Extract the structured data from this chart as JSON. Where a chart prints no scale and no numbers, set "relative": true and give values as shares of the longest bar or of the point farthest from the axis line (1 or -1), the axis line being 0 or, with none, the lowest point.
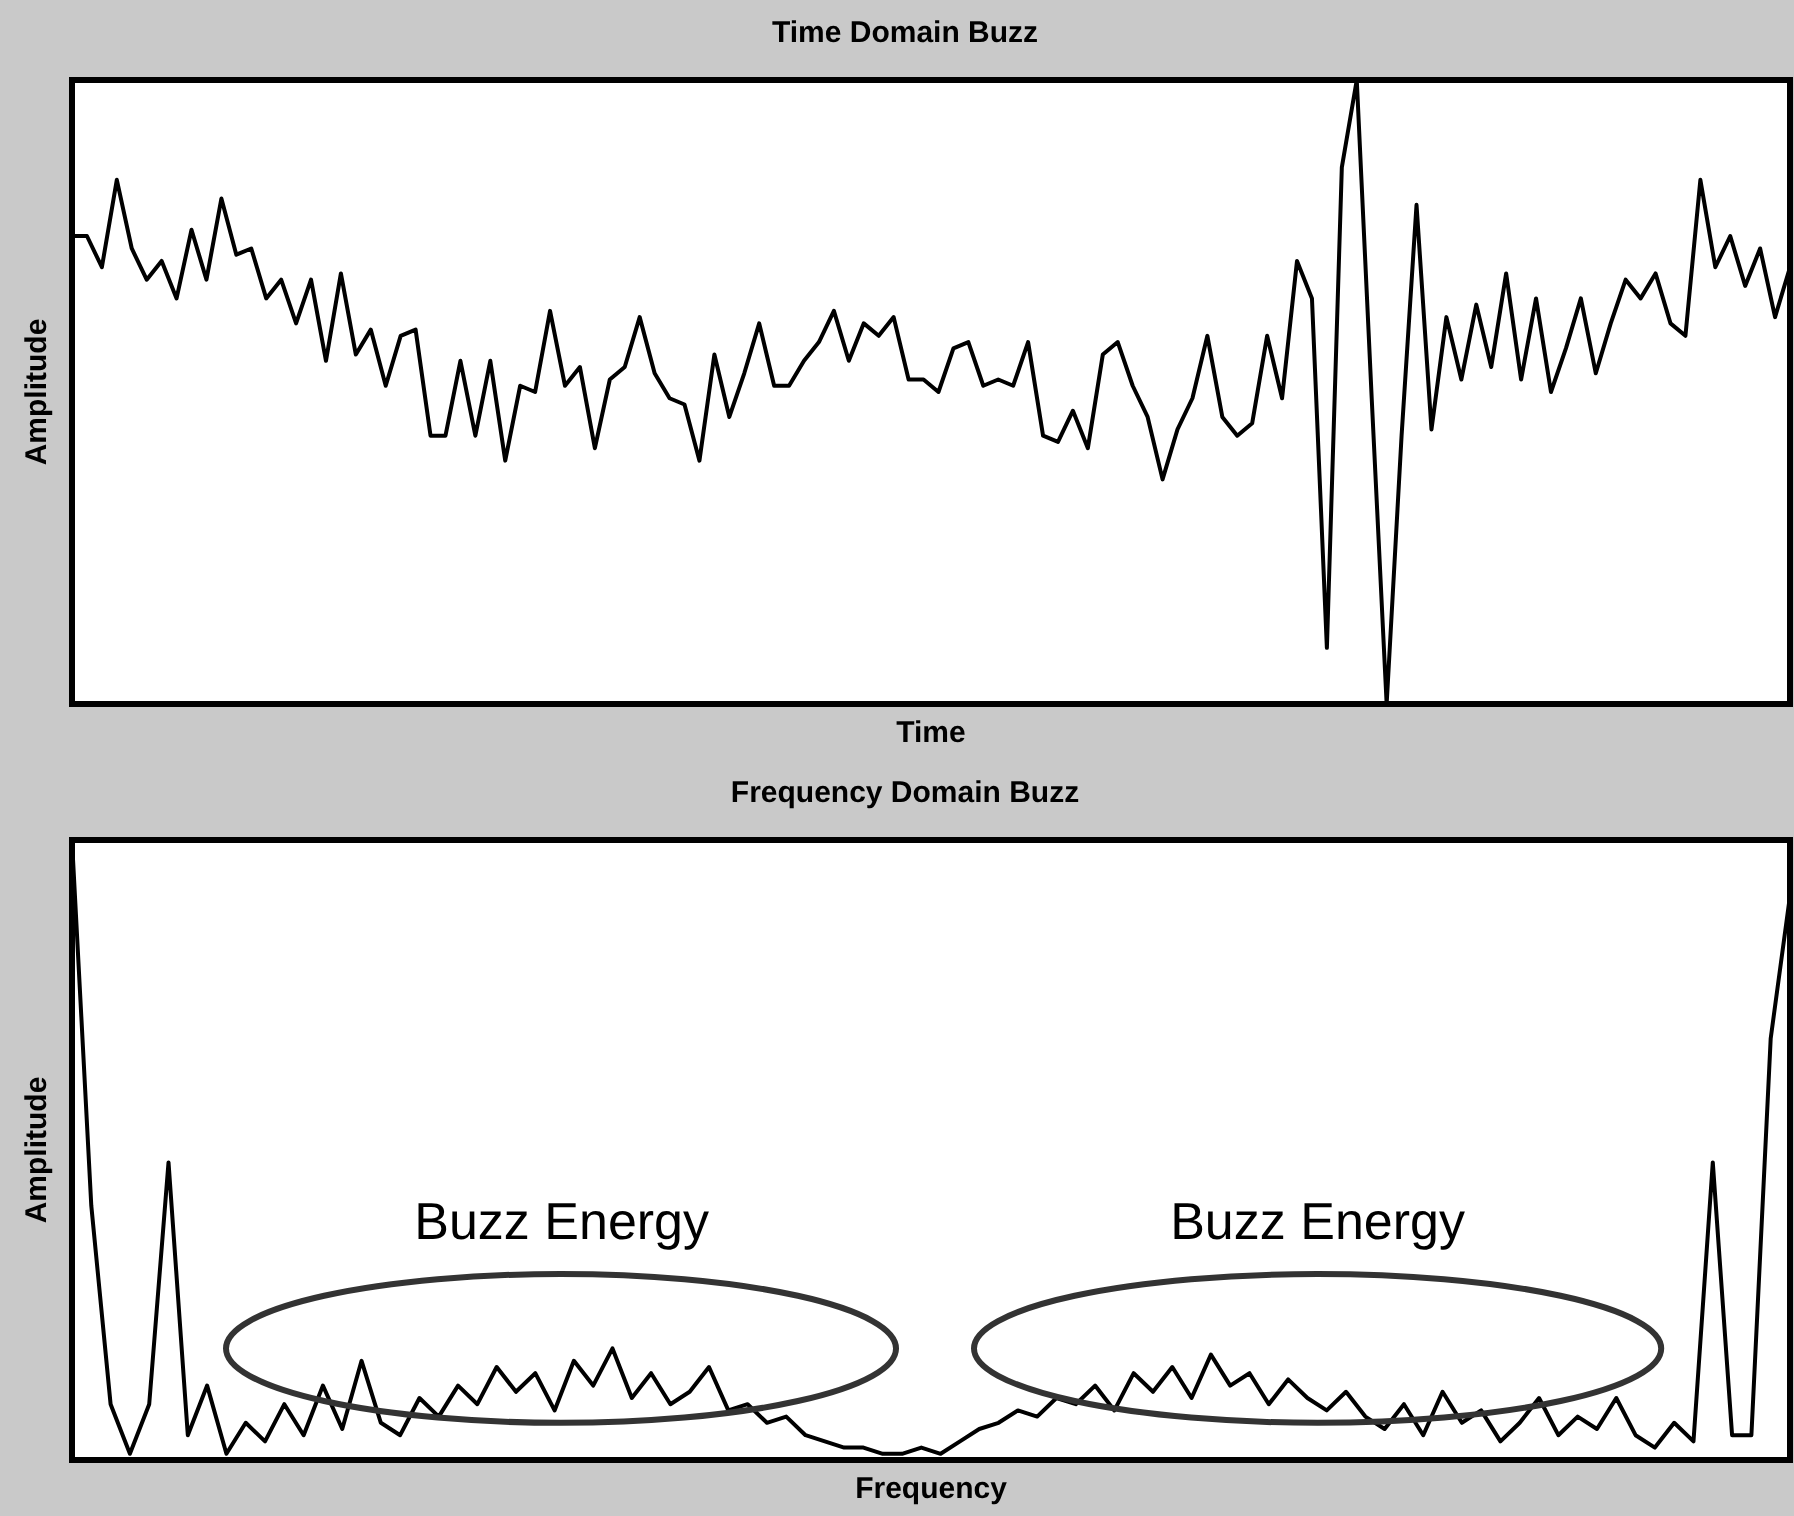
{
  "chart_data": [
    {
      "type": "line",
      "title": "Time Domain Buzz",
      "xlabel": "Time",
      "ylabel": "Amplitude",
      "relative": true,
      "grid": false,
      "legend": false,
      "marker": "none",
      "line_style": "solid",
      "color": "#000000",
      "categories": [
        null,
        null,
        null,
        null,
        null,
        null,
        null,
        null,
        null,
        null,
        null,
        null,
        null,
        null,
        null,
        null,
        null,
        null,
        null,
        null,
        null,
        null,
        null,
        null,
        null,
        null,
        null,
        null,
        null,
        null,
        null,
        null,
        null,
        null,
        null,
        null,
        null,
        null,
        null,
        null,
        null,
        null,
        null,
        null,
        null,
        null,
        null,
        null,
        null,
        null,
        null,
        null,
        null,
        null,
        null,
        null,
        null,
        null,
        null,
        null,
        null,
        null,
        null,
        null,
        null,
        null,
        null,
        null,
        null,
        null,
        null,
        null,
        null,
        null,
        null,
        null,
        null,
        null,
        null,
        null,
        null,
        null,
        null,
        null,
        null,
        null,
        null,
        null,
        null,
        null,
        null,
        null,
        null,
        null,
        null,
        null,
        null,
        null,
        null,
        null,
        null,
        null,
        null,
        null,
        null,
        null,
        null,
        null,
        null,
        null,
        null,
        null,
        null,
        null,
        null,
        null
      ],
      "values": [
        0.75,
        0.75,
        0.7,
        0.84,
        0.73,
        0.68,
        0.71,
        0.65,
        0.76,
        0.68,
        0.81,
        0.72,
        0.73,
        0.65,
        0.68,
        0.61,
        0.68,
        0.55,
        0.69,
        0.56,
        0.6,
        0.51,
        0.59,
        0.6,
        0.43,
        0.43,
        0.55,
        0.43,
        0.55,
        0.39,
        0.51,
        0.5,
        0.63,
        0.51,
        0.54,
        0.41,
        0.52,
        0.54,
        0.62,
        0.53,
        0.49,
        0.48,
        0.39,
        0.56,
        0.46,
        0.53,
        0.61,
        0.51,
        0.51,
        0.55,
        0.58,
        0.63,
        0.55,
        0.61,
        0.59,
        0.62,
        0.52,
        0.52,
        0.5,
        0.57,
        0.58,
        0.51,
        0.52,
        0.51,
        0.58,
        0.43,
        0.42,
        0.47,
        0.41,
        0.56,
        0.58,
        0.51,
        0.46,
        0.36,
        0.44,
        0.49,
        0.59,
        0.46,
        0.43,
        0.45,
        0.59,
        0.49,
        0.71,
        0.65,
        0.09,
        0.86,
        1,
        0.49,
        0,
        0.43,
        0.8,
        0.44,
        0.62,
        0.52,
        0.64,
        0.54,
        0.69,
        0.52,
        0.65,
        0.5,
        0.57,
        0.65,
        0.53,
        0.61,
        0.68,
        0.65,
        0.69,
        0.61,
        0.59,
        0.84,
        0.7,
        0.75,
        0.67,
        0.73,
        0.62,
        0.7
      ]
    },
    {
      "type": "line",
      "title": "Frequency Domain Buzz",
      "xlabel": "Frequency",
      "ylabel": "Amplitude",
      "relative": true,
      "grid": false,
      "legend": false,
      "marker": "none",
      "line_style": "solid",
      "color": "#000000",
      "annotations": [
        "Buzz Energy",
        "Buzz Energy"
      ],
      "categories": [
        null,
        null,
        null,
        null,
        null,
        null,
        null,
        null,
        null,
        null,
        null,
        null,
        null,
        null,
        null,
        null,
        null,
        null,
        null,
        null,
        null,
        null,
        null,
        null,
        null,
        null,
        null,
        null,
        null,
        null,
        null,
        null,
        null,
        null,
        null,
        null,
        null,
        null,
        null,
        null,
        null,
        null,
        null,
        null,
        null,
        null,
        null,
        null,
        null,
        null,
        null,
        null,
        null,
        null,
        null,
        null,
        null,
        null,
        null,
        null,
        null,
        null,
        null,
        null,
        null,
        null,
        null,
        null,
        null,
        null,
        null,
        null,
        null,
        null,
        null,
        null,
        null,
        null,
        null,
        null,
        null,
        null,
        null,
        null,
        null,
        null,
        null,
        null,
        null,
        null
      ],
      "values": [
        1,
        0.41,
        0.09,
        0.01,
        0.09,
        0.48,
        0.04,
        0.12,
        0.01,
        0.06,
        0.03,
        0.09,
        0.04,
        0.12,
        0.05,
        0.16,
        0.06,
        0.04,
        0.1,
        0.07,
        0.12,
        0.09,
        0.15,
        0.11,
        0.14,
        0.08,
        0.16,
        0.12,
        0.18,
        0.1,
        0.14,
        0.09,
        0.11,
        0.15,
        0.08,
        0.09,
        0.06,
        0.07,
        0.04,
        0.03,
        0.02,
        0.02,
        0.01,
        0.01,
        0.02,
        0.01,
        0.03,
        0.05,
        0.06,
        0.08,
        0.07,
        0.1,
        0.09,
        0.12,
        0.08,
        0.14,
        0.11,
        0.15,
        0.1,
        0.17,
        0.12,
        0.14,
        0.09,
        0.13,
        0.1,
        0.08,
        0.11,
        0.07,
        0.05,
        0.09,
        0.04,
        0.11,
        0.06,
        0.08,
        0.03,
        0.06,
        0.1,
        0.04,
        0.07,
        0.05,
        0.1,
        0.04,
        0.02,
        0.06,
        0.03,
        0.48,
        0.04,
        0.04,
        0.68,
        0.91
      ]
    }
  ]
}
